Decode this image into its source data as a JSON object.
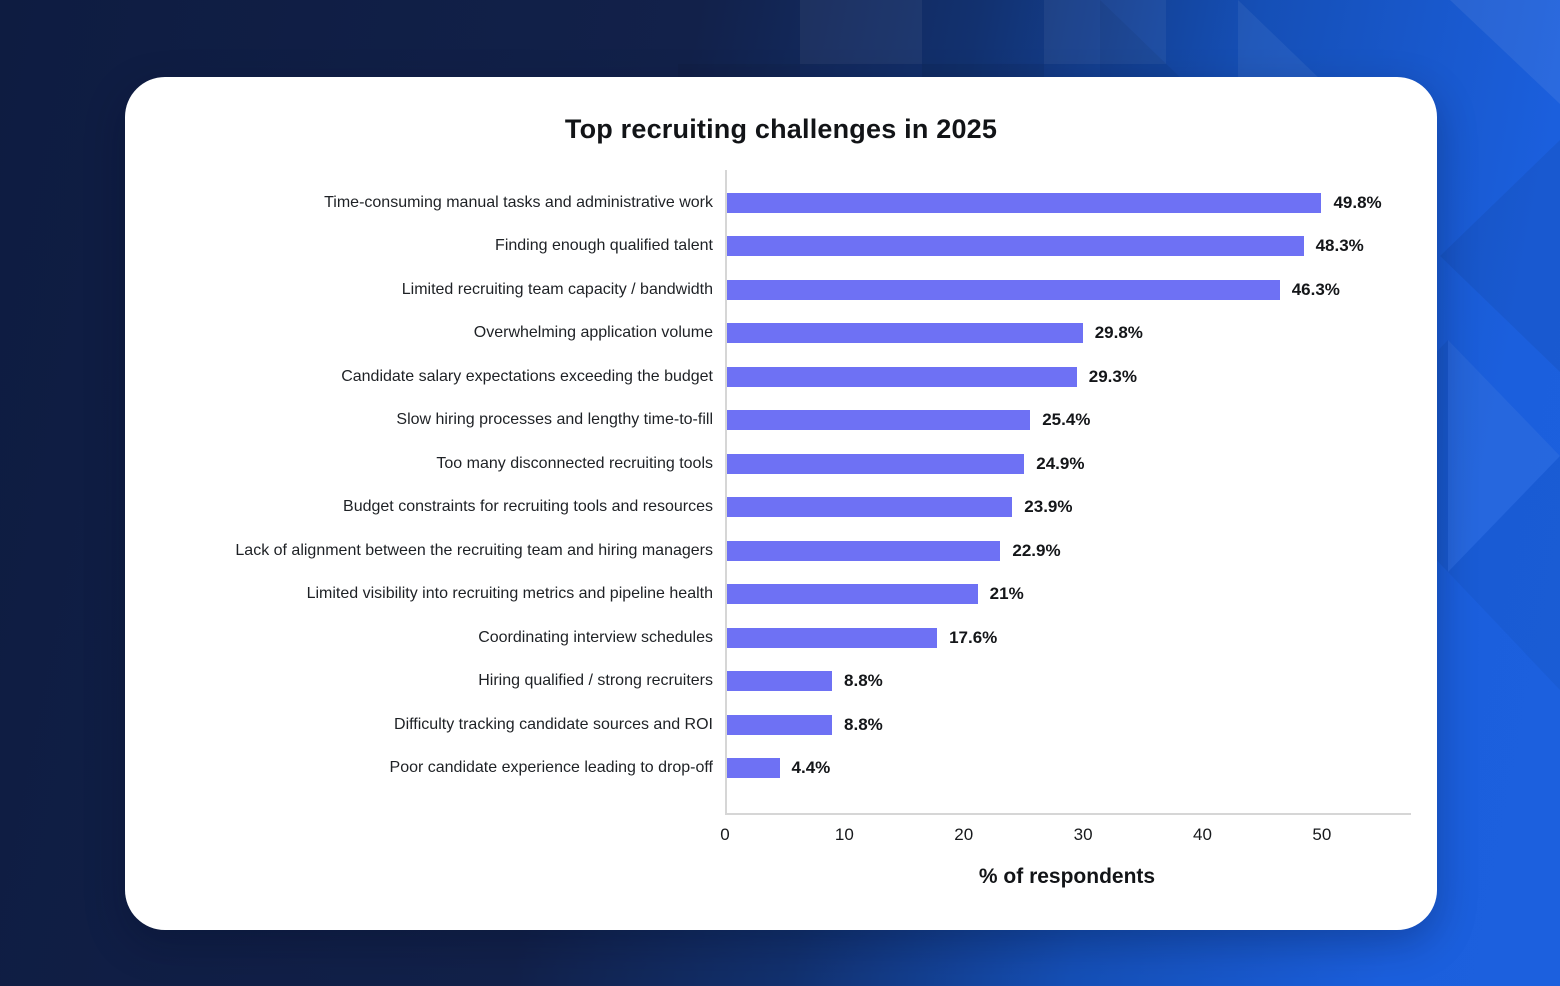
{
  "background": {
    "navy_color": "#12214a",
    "bright_blue_color": "#1b5fdd"
  },
  "chart_data": {
    "type": "bar",
    "orientation": "horizontal",
    "title": "Top recruiting challenges in 2025",
    "xlabel": "% of respondents",
    "categories": [
      "Time-consuming manual tasks and administrative work",
      "Finding enough qualified talent",
      "Limited recruiting team capacity / bandwidth",
      "Overwhelming application volume",
      "Candidate salary expectations exceeding the budget",
      "Slow hiring processes and lengthy time-to-fill",
      "Too many disconnected recruiting tools",
      "Budget constraints for recruiting tools and resources",
      "Lack of alignment between the recruiting team and hiring managers",
      "Limited visibility into recruiting metrics and pipeline health",
      "Coordinating interview schedules",
      "Hiring qualified / strong recruiters",
      "Difficulty tracking candidate sources and ROI",
      "Poor candidate experience leading to drop-off"
    ],
    "values": [
      49.8,
      48.3,
      46.3,
      29.8,
      29.3,
      25.4,
      24.9,
      23.9,
      22.9,
      21,
      17.6,
      8.8,
      8.8,
      4.4
    ],
    "value_labels": [
      "49.8%",
      "48.3%",
      "46.3%",
      "29.8%",
      "29.3%",
      "25.4%",
      "24.9%",
      "23.9%",
      "22.9%",
      "21%",
      "17.6%",
      "8.8%",
      "8.8%",
      "4.4%"
    ],
    "xticks": [
      0,
      10,
      20,
      30,
      40,
      50
    ],
    "xlim": [
      0,
      57.3
    ],
    "bar_color": "#6e71f4",
    "axis_color": "#d6d6d6",
    "grid": false,
    "legend": null
  }
}
